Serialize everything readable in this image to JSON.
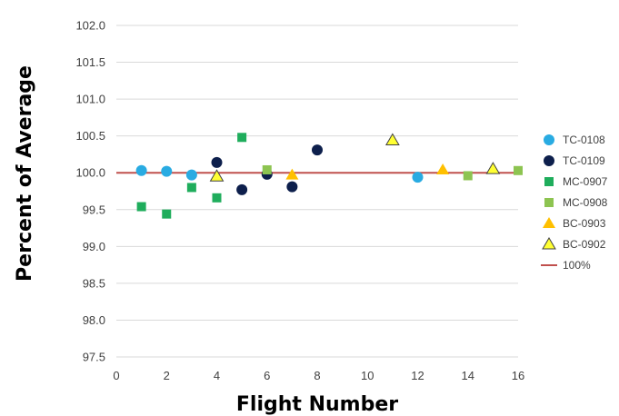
{
  "chart_data": {
    "type": "scatter",
    "xlabel": "Flight Number",
    "ylabel": "Percent of Average",
    "xlim": [
      0,
      16
    ],
    "ylim": [
      97.5,
      102.0
    ],
    "x_ticks": [
      "0",
      "2",
      "4",
      "6",
      "8",
      "10",
      "12",
      "14",
      "16"
    ],
    "y_ticks": [
      "97.5",
      "98.0",
      "98.5",
      "99.0",
      "99.5",
      "100.0",
      "100.5",
      "101.0",
      "101.5",
      "102.0"
    ],
    "grid": "horizontal",
    "legend_position": "right",
    "series": [
      {
        "name": "TC-0108",
        "marker": "circle",
        "color": "#29ABE2",
        "points": [
          [
            1,
            100.03
          ],
          [
            2,
            100.02
          ],
          [
            3,
            99.97
          ],
          [
            12,
            99.94
          ]
        ]
      },
      {
        "name": "TC-0109",
        "marker": "circle",
        "color": "#0D1F4C",
        "points": [
          [
            4,
            100.14
          ],
          [
            5,
            99.77
          ],
          [
            6,
            99.98
          ],
          [
            7,
            99.81
          ],
          [
            8,
            100.31
          ]
        ]
      },
      {
        "name": "MC-0907",
        "marker": "square",
        "color": "#1FAD5C",
        "points": [
          [
            1,
            99.54
          ],
          [
            2,
            99.44
          ],
          [
            3,
            99.8
          ],
          [
            4,
            99.66
          ],
          [
            5,
            100.48
          ]
        ]
      },
      {
        "name": "MC-0908",
        "marker": "square",
        "color": "#8DC451",
        "points": [
          [
            6,
            100.04
          ],
          [
            14,
            99.96
          ],
          [
            16,
            100.03
          ]
        ]
      },
      {
        "name": "BC-0903",
        "marker": "triangle",
        "color": "#FFC000",
        "points": [
          [
            7,
            99.97
          ],
          [
            13,
            100.04
          ]
        ]
      },
      {
        "name": "BC-0902",
        "marker": "triangle-outline",
        "color": "#FFFF33",
        "points": [
          [
            4,
            99.95
          ],
          [
            11,
            100.44
          ],
          [
            15,
            100.05
          ]
        ]
      }
    ],
    "reference_line": {
      "name": "100%",
      "value": 100.0,
      "color": "#C0504D"
    }
  }
}
